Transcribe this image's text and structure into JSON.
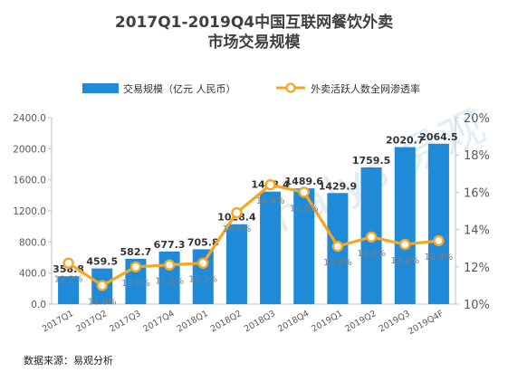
{
  "chart_data": {
    "type": "bar",
    "title_line1": "2017Q1-2019Q4中国互联网餐饮外卖",
    "title_line2": "市场交易规模",
    "categories": [
      "2017Q1",
      "2017Q2",
      "2017Q3",
      "2017Q4",
      "2018Q1",
      "2018Q2",
      "2018Q3",
      "2018Q4",
      "2019Q1",
      "2019Q2",
      "2019Q3",
      "2019Q4F"
    ],
    "series": [
      {
        "name": "交易规模（亿元 人民币）",
        "type": "bar",
        "axis": "left",
        "values": [
          358.8,
          459.5,
          582.7,
          677.3,
          705.8,
          1028.4,
          1448.4,
          1489.6,
          1429.9,
          1759.5,
          2020.7,
          2064.5
        ],
        "labels": [
          "358.8",
          "459.5",
          "582.7",
          "677.3",
          "705.8",
          "1028.4",
          "1448.4",
          "1489.6",
          "1429.9",
          "1759.5",
          "2020.7",
          "2064.5"
        ],
        "color": "#1f8ad8"
      },
      {
        "name": "外卖活跃人数全网渗透率",
        "type": "line",
        "axis": "right",
        "values": [
          12.2,
          11.0,
          12.0,
          12.1,
          12.2,
          14.9,
          16.4,
          16.0,
          13.1,
          13.6,
          13.2,
          13.4
        ],
        "labels": [
          "12.2%",
          "11.0%",
          "12.0%",
          "12.1%",
          "12.2%",
          "14.9%",
          "16.4%",
          "16.0%",
          "13.1%",
          "13.6%",
          "13.2%",
          "13.4%"
        ],
        "color": "#f5a623"
      }
    ],
    "y_left": {
      "min": 0,
      "max": 2400,
      "ticks": [
        "0.0",
        "400.0",
        "800.0",
        "1200.0",
        "1600.0",
        "2000.0",
        "2400.0"
      ]
    },
    "y_right": {
      "min": 10,
      "max": 20,
      "ticks": [
        "10%",
        "12%",
        "14%",
        "16%",
        "18%",
        "20%"
      ]
    },
    "legend_position": "top",
    "grid": false
  },
  "source": "数据来源：易观分析",
  "watermark": "nalys 易观"
}
